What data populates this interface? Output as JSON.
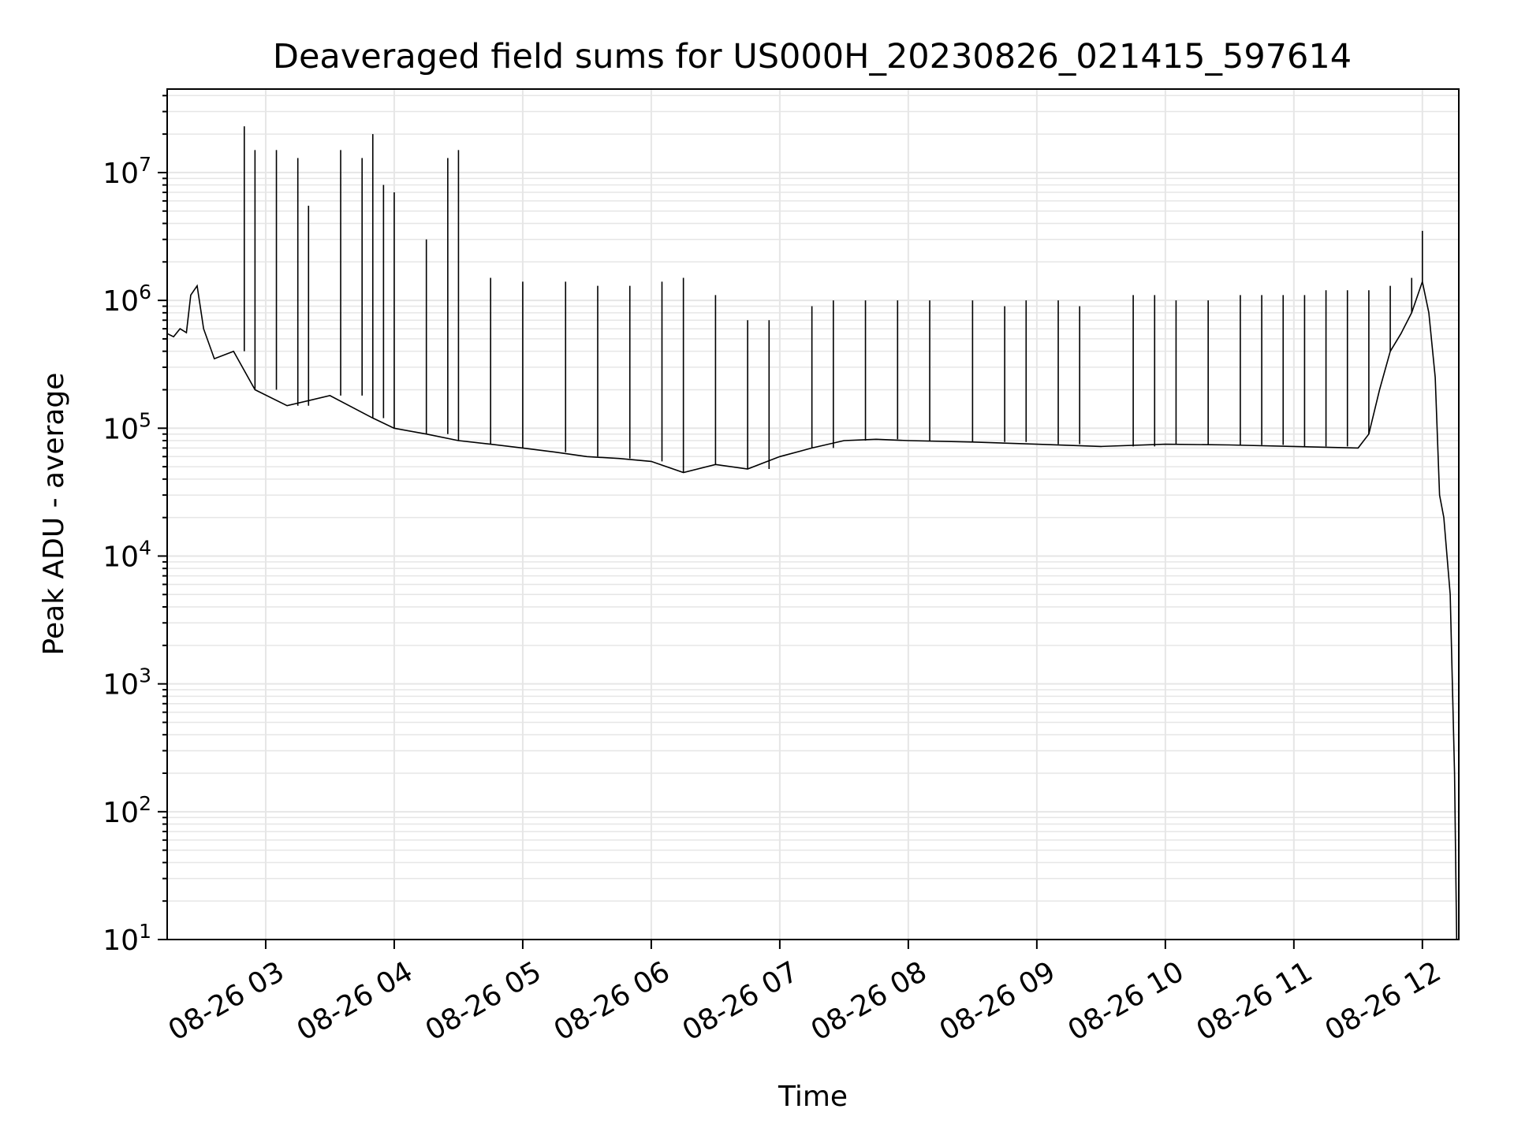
{
  "chart_data": {
    "type": "line",
    "title": "Deaveraged field sums for US000H_20230826_021415_597614",
    "xlabel": "Time",
    "ylabel": "Peak ADU - average",
    "yscale": "log",
    "ylim": [
      10,
      45000000
    ],
    "xlim": [
      "2023-08-26 02:14",
      "2023-08-26 12:17"
    ],
    "grid": true,
    "line_color": "#000000",
    "grid_color": "#e6e6e6",
    "x_ticks": [
      "2023-08-26 03:00",
      "2023-08-26 04:00",
      "2023-08-26 05:00",
      "2023-08-26 06:00",
      "2023-08-26 07:00",
      "2023-08-26 08:00",
      "2023-08-26 09:00",
      "2023-08-26 10:00",
      "2023-08-26 11:00",
      "2023-08-26 12:00"
    ],
    "x_tick_labels": [
      "08-26 03",
      "08-26 04",
      "08-26 05",
      "08-26 06",
      "08-26 07",
      "08-26 08",
      "08-26 09",
      "08-26 10",
      "08-26 11",
      "08-26 12"
    ],
    "y_ticks": [
      {
        "value": 10,
        "base": "10",
        "exp": "1"
      },
      {
        "value": 100,
        "base": "10",
        "exp": "2"
      },
      {
        "value": 1000,
        "base": "10",
        "exp": "3"
      },
      {
        "value": 10000,
        "base": "10",
        "exp": "4"
      },
      {
        "value": 100000,
        "base": "10",
        "exp": "5"
      },
      {
        "value": 1000000,
        "base": "10",
        "exp": "6"
      },
      {
        "value": 10000000,
        "base": "10",
        "exp": "7"
      }
    ],
    "series": [
      {
        "points": [
          [
            "2023-08-26 02:14",
            550000
          ],
          [
            "2023-08-26 02:17",
            520000
          ],
          [
            "2023-08-26 02:20",
            600000
          ],
          [
            "2023-08-26 02:23",
            560000
          ],
          [
            "2023-08-26 02:25",
            1100000
          ],
          [
            "2023-08-26 02:28",
            1300000
          ],
          [
            "2023-08-26 02:31",
            600000
          ],
          [
            "2023-08-26 02:36",
            350000
          ],
          [
            "2023-08-26 02:45",
            400000
          ],
          [
            "2023-08-26 02:55",
            200000
          ],
          [
            "2023-08-26 03:10",
            150000
          ],
          [
            "2023-08-26 03:30",
            180000
          ],
          [
            "2023-08-26 03:50",
            120000
          ],
          [
            "2023-08-26 04:00",
            100000
          ],
          [
            "2023-08-26 04:15",
            90000
          ],
          [
            "2023-08-26 04:30",
            80000
          ],
          [
            "2023-08-26 04:45",
            75000
          ],
          [
            "2023-08-26 05:00",
            70000
          ],
          [
            "2023-08-26 05:15",
            65000
          ],
          [
            "2023-08-26 05:30",
            60000
          ],
          [
            "2023-08-26 05:45",
            58000
          ],
          [
            "2023-08-26 06:00",
            55000
          ],
          [
            "2023-08-26 06:15",
            45000
          ],
          [
            "2023-08-26 06:30",
            52000
          ],
          [
            "2023-08-26 06:45",
            48000
          ],
          [
            "2023-08-26 07:00",
            60000
          ],
          [
            "2023-08-26 07:15",
            70000
          ],
          [
            "2023-08-26 07:30",
            80000
          ],
          [
            "2023-08-26 07:45",
            82000
          ],
          [
            "2023-08-26 08:00",
            80000
          ],
          [
            "2023-08-26 08:30",
            78000
          ],
          [
            "2023-08-26 09:00",
            75000
          ],
          [
            "2023-08-26 09:30",
            72000
          ],
          [
            "2023-08-26 10:00",
            75000
          ],
          [
            "2023-08-26 10:30",
            74000
          ],
          [
            "2023-08-26 11:00",
            72000
          ],
          [
            "2023-08-26 11:30",
            70000
          ],
          [
            "2023-08-26 11:35",
            90000
          ],
          [
            "2023-08-26 11:40",
            200000
          ],
          [
            "2023-08-26 11:45",
            400000
          ],
          [
            "2023-08-26 11:50",
            550000
          ],
          [
            "2023-08-26 11:55",
            800000
          ],
          [
            "2023-08-26 12:00",
            1400000
          ],
          [
            "2023-08-26 12:03",
            800000
          ],
          [
            "2023-08-26 12:06",
            250000
          ],
          [
            "2023-08-26 12:08",
            30000
          ],
          [
            "2023-08-26 12:10",
            20000
          ],
          [
            "2023-08-26 12:13",
            5000
          ],
          [
            "2023-08-26 12:15",
            200
          ],
          [
            "2023-08-26 12:16",
            10
          ]
        ],
        "spikes": [
          [
            "2023-08-26 02:50",
            23000000
          ],
          [
            "2023-08-26 02:55",
            15000000
          ],
          [
            "2023-08-26 03:05",
            15000000
          ],
          [
            "2023-08-26 03:15",
            13000000
          ],
          [
            "2023-08-26 03:20",
            5500000
          ],
          [
            "2023-08-26 03:35",
            15000000
          ],
          [
            "2023-08-26 03:45",
            13000000
          ],
          [
            "2023-08-26 03:50",
            20000000
          ],
          [
            "2023-08-26 03:55",
            8000000
          ],
          [
            "2023-08-26 04:00",
            7000000
          ],
          [
            "2023-08-26 04:15",
            3000000
          ],
          [
            "2023-08-26 04:25",
            13000000
          ],
          [
            "2023-08-26 04:30",
            15000000
          ],
          [
            "2023-08-26 04:45",
            1500000
          ],
          [
            "2023-08-26 05:00",
            1400000
          ],
          [
            "2023-08-26 05:20",
            1400000
          ],
          [
            "2023-08-26 05:35",
            1300000
          ],
          [
            "2023-08-26 05:50",
            1300000
          ],
          [
            "2023-08-26 06:05",
            1400000
          ],
          [
            "2023-08-26 06:15",
            1500000
          ],
          [
            "2023-08-26 06:30",
            1100000
          ],
          [
            "2023-08-26 06:45",
            700000
          ],
          [
            "2023-08-26 06:55",
            700000
          ],
          [
            "2023-08-26 07:15",
            900000
          ],
          [
            "2023-08-26 07:25",
            1000000
          ],
          [
            "2023-08-26 07:40",
            1000000
          ],
          [
            "2023-08-26 07:55",
            1000000
          ],
          [
            "2023-08-26 08:10",
            1000000
          ],
          [
            "2023-08-26 08:30",
            1000000
          ],
          [
            "2023-08-26 08:45",
            900000
          ],
          [
            "2023-08-26 08:55",
            1000000
          ],
          [
            "2023-08-26 09:10",
            1000000
          ],
          [
            "2023-08-26 09:20",
            900000
          ],
          [
            "2023-08-26 09:45",
            1100000
          ],
          [
            "2023-08-26 09:55",
            1100000
          ],
          [
            "2023-08-26 10:05",
            1000000
          ],
          [
            "2023-08-26 10:20",
            1000000
          ],
          [
            "2023-08-26 10:35",
            1100000
          ],
          [
            "2023-08-26 10:45",
            1100000
          ],
          [
            "2023-08-26 10:55",
            1100000
          ],
          [
            "2023-08-26 11:05",
            1100000
          ],
          [
            "2023-08-26 11:15",
            1200000
          ],
          [
            "2023-08-26 11:25",
            1200000
          ],
          [
            "2023-08-26 11:35",
            1200000
          ],
          [
            "2023-08-26 11:45",
            1300000
          ],
          [
            "2023-08-26 11:55",
            1500000
          ],
          [
            "2023-08-26 12:00",
            3500000
          ]
        ]
      }
    ]
  }
}
